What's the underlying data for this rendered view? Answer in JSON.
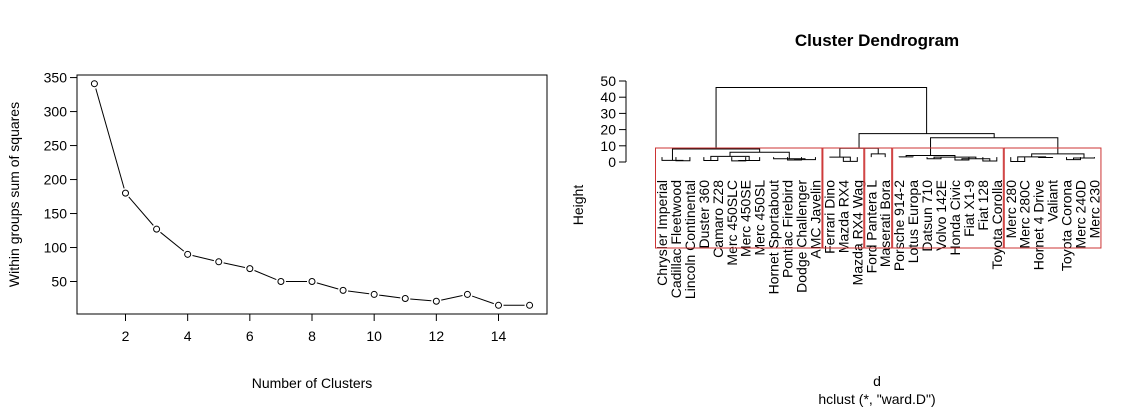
{
  "chart_data": [
    {
      "type": "line",
      "title": "",
      "xlabel": "Number of Clusters",
      "ylabel": "Within groups sum of squares",
      "x": [
        1,
        2,
        3,
        4,
        5,
        6,
        7,
        8,
        9,
        10,
        11,
        12,
        13,
        14,
        15
      ],
      "values": [
        341,
        180,
        127,
        90,
        79,
        69,
        50,
        50,
        37,
        31,
        25,
        21,
        31,
        15,
        15
      ],
      "xticks": [
        "2",
        "4",
        "6",
        "8",
        "10",
        "12",
        "14"
      ],
      "yticks": [
        "50",
        "100",
        "150",
        "200",
        "250",
        "300",
        "350"
      ],
      "xlim": [
        0.44,
        15.56
      ],
      "ylim": [
        2.2,
        353.8
      ],
      "markers": "open-circle",
      "grid": false,
      "legend": "none"
    },
    {
      "type": "dendrogram",
      "title": "Cluster Dendrogram",
      "xlabel": "d",
      "sublabel": "hclust (*, \"ward.D\")",
      "ylabel": "Height",
      "yticks": [
        "0",
        "10",
        "20",
        "30",
        "40",
        "50"
      ],
      "ylim": [
        0,
        50
      ],
      "labels": [
        "Chrysler Imperial",
        "Cadillac Fleetwood",
        "Lincoln Continental",
        "Duster 360",
        "Camaro Z28",
        "Merc 450SLC",
        "Merc 450SE",
        "Merc 450SL",
        "Hornet Sportabout",
        "Pontiac Firebird",
        "Dodge Challenger",
        "AMC Javelin",
        "Ferrari Dino",
        "Mazda RX4",
        "Mazda RX4 Wag",
        "Ford Pantera L",
        "Maserati Bora",
        "Porsche 914-2",
        "Lotus Europa",
        "Datsun 710",
        "Volvo 142E",
        "Honda Civic",
        "Fiat X1-9",
        "Fiat 128",
        "Toyota Corolla",
        "Merc 280",
        "Merc 280C",
        "Hornet 4 Drive",
        "Valiant",
        "Toyota Corona",
        "Merc 240D",
        "Merc 230"
      ],
      "merges": [
        [
          [
            1,
            2
          ],
          0.8
        ],
        [
          [
            0,
            32
          ],
          1.0
        ],
        [
          [
            3,
            4
          ],
          0.9
        ],
        [
          [
            5,
            6
          ],
          0.7
        ],
        [
          [
            35,
            7
          ],
          0.9
        ],
        [
          [
            34,
            36
          ],
          3.5
        ],
        [
          [
            9,
            10
          ],
          1.2
        ],
        [
          [
            11,
            38
          ],
          1.5
        ],
        [
          [
            8,
            39
          ],
          2.0
        ],
        [
          [
            37,
            40
          ],
          6.0
        ],
        [
          [
            33,
            41
          ],
          8.0
        ],
        [
          [
            13,
            14
          ],
          0.4
        ],
        [
          [
            12,
            43
          ],
          3.0
        ],
        [
          [
            15,
            16
          ],
          5.0
        ],
        [
          [
            44,
            45
          ],
          8.5
        ],
        [
          [
            17,
            18
          ],
          3.2
        ],
        [
          [
            19,
            20
          ],
          2.0
        ],
        [
          [
            21,
            22
          ],
          1.2
        ],
        [
          [
            23,
            24
          ],
          0.6
        ],
        [
          [
            49,
            50
          ],
          2.0
        ],
        [
          [
            48,
            51
          ],
          3.0
        ],
        [
          [
            47,
            52
          ],
          4.0
        ],
        [
          [
            25,
            26
          ],
          0.3
        ],
        [
          [
            27,
            28
          ],
          2.8
        ],
        [
          [
            54,
            55
          ],
          3.2
        ],
        [
          [
            29,
            30
          ],
          1.5
        ],
        [
          [
            57,
            31
          ],
          2.5
        ],
        [
          [
            56,
            58
          ],
          5.0
        ],
        [
          [
            53,
            59
          ],
          15.0
        ],
        [
          [
            46,
            60
          ],
          17.5
        ],
        [
          [
            42,
            61
          ],
          46.0
        ]
      ],
      "cluster_boxes": [
        [
          0,
          11
        ],
        [
          12,
          14
        ],
        [
          15,
          16
        ],
        [
          17,
          24
        ],
        [
          25,
          31
        ]
      ],
      "box_color": "#CC3333"
    }
  ]
}
